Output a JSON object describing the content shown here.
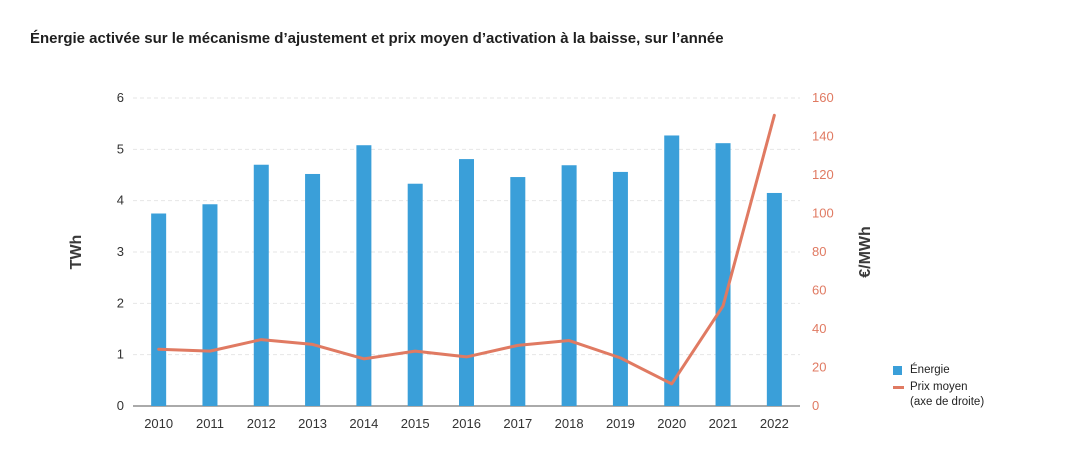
{
  "chart_data": {
    "type": "bar",
    "title": "Énergie activée sur le mécanisme d’ajustement et prix moyen d’activation à la baisse, sur l’année",
    "categories": [
      "2010",
      "2011",
      "2012",
      "2013",
      "2014",
      "2015",
      "2016",
      "2017",
      "2018",
      "2019",
      "2020",
      "2021",
      "2022"
    ],
    "series": [
      {
        "name": "Énergie",
        "kind": "bar",
        "axis": "left",
        "color": "#3a9fd9",
        "values": [
          3.75,
          3.93,
          4.7,
          4.52,
          5.08,
          4.33,
          4.81,
          4.46,
          4.69,
          4.56,
          5.27,
          5.12,
          4.15
        ]
      },
      {
        "name": "Prix moyen",
        "name_line2": "(axe de droite)",
        "kind": "line",
        "axis": "right",
        "color": "#e07a62",
        "values": [
          29.5,
          28.5,
          34.5,
          32,
          24.5,
          28.5,
          25.5,
          31.5,
          34,
          25,
          11.5,
          52,
          151
        ]
      }
    ],
    "ylabel": "TWh",
    "ylabel_right": "€/MWh",
    "ylim": [
      0,
      6
    ],
    "yticks": [
      0,
      1,
      2,
      3,
      4,
      5,
      6
    ],
    "ylim_right": [
      0,
      160
    ],
    "yticks_right": [
      0,
      20,
      40,
      60,
      80,
      100,
      120,
      140,
      160
    ],
    "grid": true,
    "legend": "right"
  }
}
